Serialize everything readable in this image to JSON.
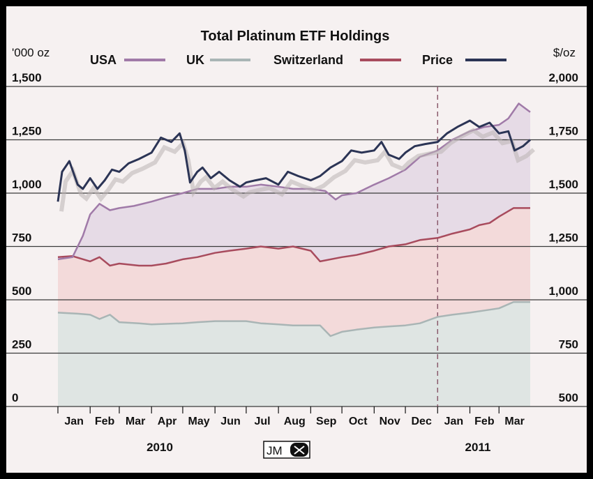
{
  "chart_data": {
    "type": "line",
    "title": "Total Platinum ETF Holdings",
    "y_left_unit": "'000 oz",
    "y_right_unit": "$/oz",
    "ylim_left": [
      0,
      1500
    ],
    "ylim_right": [
      500,
      2000
    ],
    "y_left_ticks": [
      "0",
      "250",
      "500",
      "750",
      "1,000",
      "1,250",
      "1,500"
    ],
    "y_right_ticks": [
      "500",
      "750",
      "1,000",
      "1,250",
      "1,500",
      "1,750",
      "2,000"
    ],
    "months": [
      "Jan",
      "Feb",
      "Mar",
      "Apr",
      "May",
      "Jun",
      "Jul",
      "Aug",
      "Sep",
      "Oct",
      "Nov",
      "Dec",
      "Jan",
      "Feb",
      "Mar"
    ],
    "years": [
      "2010",
      "2011"
    ],
    "x_start": "2010-01-01",
    "x_end": "2011-03-31",
    "divider": "2011-01-01",
    "grid": true,
    "legend_position": "top",
    "logo": "JM",
    "series": [
      {
        "name": "USA",
        "key": "usa",
        "axis": "left",
        "color": "#a07aa8",
        "fill": "#e6dbe6",
        "x": [
          "2010-01-01",
          "2010-01-15",
          "2010-01-25",
          "2010-02-01",
          "2010-02-10",
          "2010-02-20",
          "2010-03-01",
          "2010-03-15",
          "2010-04-01",
          "2010-04-15",
          "2010-05-01",
          "2010-05-15",
          "2010-06-01",
          "2010-06-15",
          "2010-07-01",
          "2010-07-15",
          "2010-08-01",
          "2010-08-15",
          "2010-09-01",
          "2010-09-15",
          "2010-09-25",
          "2010-10-01",
          "2010-10-15",
          "2010-11-01",
          "2010-11-15",
          "2010-12-01",
          "2010-12-15",
          "2011-01-01",
          "2011-01-15",
          "2011-02-01",
          "2011-02-15",
          "2011-03-01",
          "2011-03-10",
          "2011-03-20",
          "2011-03-31"
        ],
        "values": [
          690,
          700,
          800,
          900,
          950,
          920,
          930,
          940,
          960,
          980,
          1000,
          1020,
          1020,
          1030,
          1030,
          1040,
          1030,
          1020,
          1020,
          1010,
          970,
          990,
          1000,
          1040,
          1070,
          1110,
          1170,
          1200,
          1250,
          1290,
          1310,
          1320,
          1350,
          1420,
          1380
        ]
      },
      {
        "name": "UK",
        "key": "uk",
        "axis": "left",
        "color": "#a9b5b5",
        "fill": "#dfe5e3",
        "x": [
          "2010-01-01",
          "2010-01-20",
          "2010-02-01",
          "2010-02-10",
          "2010-02-20",
          "2010-03-01",
          "2010-03-20",
          "2010-04-01",
          "2010-05-01",
          "2010-05-15",
          "2010-06-01",
          "2010-07-01",
          "2010-07-15",
          "2010-08-01",
          "2010-08-15",
          "2010-09-01",
          "2010-09-10",
          "2010-09-20",
          "2010-10-01",
          "2010-10-15",
          "2010-11-01",
          "2010-11-15",
          "2010-12-01",
          "2010-12-15",
          "2011-01-01",
          "2011-01-15",
          "2011-02-01",
          "2011-02-15",
          "2011-03-01",
          "2011-03-15",
          "2011-03-31"
        ],
        "values": [
          440,
          435,
          430,
          410,
          430,
          395,
          390,
          385,
          390,
          395,
          400,
          400,
          390,
          385,
          380,
          380,
          380,
          330,
          350,
          360,
          370,
          375,
          380,
          390,
          420,
          430,
          440,
          450,
          460,
          490,
          490
        ]
      },
      {
        "name": "Switzerland",
        "key": "switzerland",
        "axis": "left",
        "color": "#a84b5d",
        "fill": "#f3dada",
        "x": [
          "2010-01-01",
          "2010-01-15",
          "2010-02-01",
          "2010-02-10",
          "2010-02-20",
          "2010-03-01",
          "2010-03-20",
          "2010-04-01",
          "2010-04-15",
          "2010-05-01",
          "2010-05-15",
          "2010-06-01",
          "2010-06-15",
          "2010-07-01",
          "2010-07-15",
          "2010-08-01",
          "2010-08-15",
          "2010-09-01",
          "2010-09-10",
          "2010-10-01",
          "2010-10-15",
          "2010-11-01",
          "2010-11-15",
          "2010-12-01",
          "2010-12-15",
          "2011-01-01",
          "2011-01-15",
          "2011-02-01",
          "2011-02-10",
          "2011-02-20",
          "2011-03-01",
          "2011-03-15",
          "2011-03-31"
        ],
        "values": [
          700,
          705,
          680,
          700,
          660,
          670,
          660,
          660,
          670,
          690,
          700,
          720,
          730,
          740,
          750,
          740,
          750,
          730,
          680,
          700,
          710,
          730,
          750,
          760,
          780,
          790,
          810,
          830,
          850,
          860,
          890,
          930,
          930
        ]
      },
      {
        "name": "Price",
        "key": "price",
        "axis": "right",
        "color": "#2b3455",
        "x": [
          "2010-01-01",
          "2010-01-05",
          "2010-01-12",
          "2010-01-20",
          "2010-01-25",
          "2010-02-01",
          "2010-02-08",
          "2010-02-15",
          "2010-02-22",
          "2010-03-01",
          "2010-03-10",
          "2010-03-20",
          "2010-04-01",
          "2010-04-10",
          "2010-04-20",
          "2010-04-28",
          "2010-05-03",
          "2010-05-08",
          "2010-05-15",
          "2010-05-20",
          "2010-05-28",
          "2010-06-05",
          "2010-06-15",
          "2010-06-25",
          "2010-07-01",
          "2010-07-10",
          "2010-07-20",
          "2010-08-01",
          "2010-08-10",
          "2010-08-20",
          "2010-09-01",
          "2010-09-10",
          "2010-09-20",
          "2010-10-01",
          "2010-10-10",
          "2010-10-20",
          "2010-11-01",
          "2010-11-08",
          "2010-11-15",
          "2010-11-25",
          "2010-12-01",
          "2010-12-10",
          "2010-12-20",
          "2011-01-01",
          "2011-01-10",
          "2011-01-20",
          "2011-02-01",
          "2011-02-10",
          "2011-02-20",
          "2011-03-01",
          "2011-03-10",
          "2011-03-16",
          "2011-03-24",
          "2011-03-31"
        ],
        "values": [
          1460,
          1600,
          1650,
          1540,
          1520,
          1570,
          1520,
          1560,
          1610,
          1600,
          1640,
          1660,
          1690,
          1760,
          1740,
          1780,
          1700,
          1550,
          1600,
          1620,
          1570,
          1600,
          1560,
          1530,
          1550,
          1560,
          1570,
          1540,
          1600,
          1580,
          1560,
          1580,
          1620,
          1650,
          1700,
          1690,
          1700,
          1740,
          1680,
          1660,
          1690,
          1720,
          1730,
          1740,
          1780,
          1810,
          1840,
          1810,
          1830,
          1780,
          1790,
          1700,
          1720,
          1750
        ]
      }
    ]
  }
}
